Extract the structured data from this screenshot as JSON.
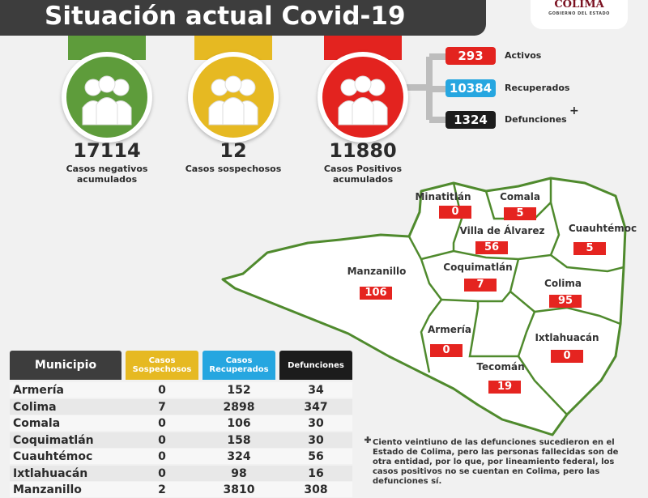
{
  "header": {
    "title": "Situación actual Covid-19",
    "logo": "COLIMA",
    "logo_subtitle": "GOBIERNO DEL ESTADO"
  },
  "summary": [
    {
      "value": 17114,
      "label": "Casos negativos acumulados"
    },
    {
      "value": 12,
      "label": "Casos sospechosos"
    },
    {
      "value": 11880,
      "label": "Casos Positivos acumulados"
    }
  ],
  "positives": [
    {
      "value": 293,
      "label": "Activos"
    },
    {
      "value": 10384,
      "label": "Recuperados"
    },
    {
      "value": 1324,
      "label": "Defunciones",
      "note": "+"
    }
  ],
  "map": {
    "municipalities": [
      {
        "name": "Minatitlán",
        "value": 0
      },
      {
        "name": "Comala",
        "value": 5
      },
      {
        "name": "Villa de Álvarez",
        "value": 56
      },
      {
        "name": "Cuauhtémoc",
        "value": 5
      },
      {
        "name": "Manzanillo",
        "value": 106
      },
      {
        "name": "Coquimatlán",
        "value": 7
      },
      {
        "name": "Colima",
        "value": 95
      },
      {
        "name": "Armería",
        "value": 0
      },
      {
        "name": "Ixtlahuacán",
        "value": 0
      },
      {
        "name": "Tecomán",
        "value": 19
      }
    ]
  },
  "table": {
    "header": [
      "Municipio",
      "Casos Sospechosos",
      "Casos Recuperados",
      "Defunciones"
    ],
    "rows": [
      [
        "Armería",
        0,
        152,
        34
      ],
      [
        "Colima",
        7,
        2898,
        347
      ],
      [
        "Comala",
        0,
        106,
        30
      ],
      [
        "Coquimatlán",
        0,
        158,
        30
      ],
      [
        "Cuauhtémoc",
        0,
        324,
        56
      ],
      [
        "Ixtlahuacán",
        0,
        98,
        16
      ],
      [
        "Manzanillo",
        2,
        3810,
        308
      ]
    ]
  },
  "footnote": "Ciento veintiuno de las defunciones sucedieron en el Estado de Colima, pero las personas fallecidas son de otra entidad, por lo que, por lineamiento federal, los casos positivos no se cuentan en Colima, pero las defunciones sí."
}
